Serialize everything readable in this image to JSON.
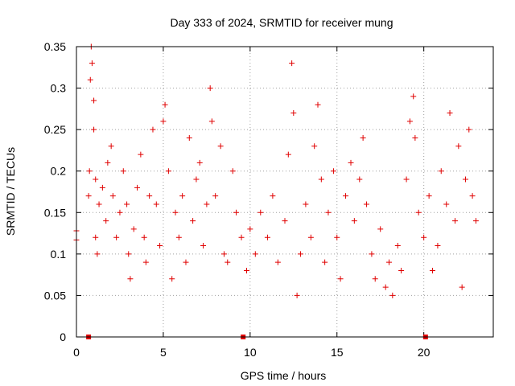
{
  "chart_data": {
    "type": "scatter",
    "title": "Day 333 of 2024, SRMTID for receiver mung",
    "xlabel": "GPS time / hours",
    "ylabel": "SRMTID / TECUs",
    "xlim": [
      0,
      24
    ],
    "ylim": [
      0,
      0.35
    ],
    "x_ticks": [
      0,
      5,
      10,
      15,
      20
    ],
    "y_ticks": [
      0,
      0.05,
      0.1,
      0.15,
      0.2,
      0.25,
      0.3,
      0.35
    ],
    "x_tick_labels": [
      "0",
      "5",
      "10",
      "15",
      "20"
    ],
    "y_tick_labels": [
      "0",
      "0.05",
      "0.1",
      "0.15",
      "0.2",
      "0.25",
      "0.3",
      "0.35"
    ],
    "grid": true,
    "marker": "+",
    "color": "#e00000",
    "zero_markers": [
      0.7,
      9.6,
      20.1
    ],
    "series": [
      {
        "name": "SRMTID",
        "points": [
          [
            0.0,
            0.128
          ],
          [
            0.0,
            0.117
          ],
          [
            0.7,
            0.17
          ],
          [
            0.75,
            0.2
          ],
          [
            0.8,
            0.31
          ],
          [
            0.85,
            0.35
          ],
          [
            0.9,
            0.33
          ],
          [
            1.0,
            0.285
          ],
          [
            1.0,
            0.25
          ],
          [
            1.1,
            0.19
          ],
          [
            1.1,
            0.12
          ],
          [
            1.2,
            0.1
          ],
          [
            1.3,
            0.16
          ],
          [
            1.5,
            0.18
          ],
          [
            1.7,
            0.14
          ],
          [
            1.8,
            0.21
          ],
          [
            2.0,
            0.23
          ],
          [
            2.1,
            0.17
          ],
          [
            2.3,
            0.12
          ],
          [
            2.5,
            0.15
          ],
          [
            2.7,
            0.2
          ],
          [
            2.9,
            0.16
          ],
          [
            3.0,
            0.1
          ],
          [
            3.1,
            0.07
          ],
          [
            3.3,
            0.13
          ],
          [
            3.5,
            0.18
          ],
          [
            3.7,
            0.22
          ],
          [
            3.9,
            0.12
          ],
          [
            4.0,
            0.09
          ],
          [
            4.2,
            0.17
          ],
          [
            4.4,
            0.25
          ],
          [
            4.6,
            0.16
          ],
          [
            4.8,
            0.11
          ],
          [
            5.0,
            0.26
          ],
          [
            5.1,
            0.28
          ],
          [
            5.3,
            0.2
          ],
          [
            5.5,
            0.07
          ],
          [
            5.7,
            0.15
          ],
          [
            5.9,
            0.12
          ],
          [
            6.1,
            0.17
          ],
          [
            6.3,
            0.09
          ],
          [
            6.5,
            0.24
          ],
          [
            6.7,
            0.14
          ],
          [
            6.9,
            0.19
          ],
          [
            7.1,
            0.21
          ],
          [
            7.3,
            0.11
          ],
          [
            7.5,
            0.16
          ],
          [
            7.7,
            0.3
          ],
          [
            7.8,
            0.26
          ],
          [
            8.0,
            0.17
          ],
          [
            8.3,
            0.23
          ],
          [
            8.5,
            0.1
          ],
          [
            8.7,
            0.09
          ],
          [
            9.0,
            0.2
          ],
          [
            9.2,
            0.15
          ],
          [
            9.5,
            0.12
          ],
          [
            9.8,
            0.08
          ],
          [
            10.0,
            0.13
          ],
          [
            10.3,
            0.1
          ],
          [
            10.6,
            0.15
          ],
          [
            11.0,
            0.12
          ],
          [
            11.3,
            0.17
          ],
          [
            11.6,
            0.09
          ],
          [
            12.0,
            0.14
          ],
          [
            12.2,
            0.22
          ],
          [
            12.4,
            0.33
          ],
          [
            12.5,
            0.27
          ],
          [
            12.7,
            0.05
          ],
          [
            12.9,
            0.1
          ],
          [
            13.2,
            0.16
          ],
          [
            13.5,
            0.12
          ],
          [
            13.7,
            0.23
          ],
          [
            13.9,
            0.28
          ],
          [
            14.1,
            0.19
          ],
          [
            14.3,
            0.09
          ],
          [
            14.5,
            0.15
          ],
          [
            14.8,
            0.2
          ],
          [
            15.0,
            0.12
          ],
          [
            15.2,
            0.07
          ],
          [
            15.5,
            0.17
          ],
          [
            15.8,
            0.21
          ],
          [
            16.0,
            0.14
          ],
          [
            16.3,
            0.19
          ],
          [
            16.5,
            0.24
          ],
          [
            16.7,
            0.16
          ],
          [
            17.0,
            0.1
          ],
          [
            17.2,
            0.07
          ],
          [
            17.5,
            0.13
          ],
          [
            17.8,
            0.06
          ],
          [
            18.0,
            0.09
          ],
          [
            18.2,
            0.05
          ],
          [
            18.5,
            0.11
          ],
          [
            18.7,
            0.08
          ],
          [
            19.0,
            0.19
          ],
          [
            19.2,
            0.26
          ],
          [
            19.4,
            0.29
          ],
          [
            19.5,
            0.24
          ],
          [
            19.7,
            0.15
          ],
          [
            20.0,
            0.12
          ],
          [
            20.3,
            0.17
          ],
          [
            20.5,
            0.08
          ],
          [
            20.8,
            0.11
          ],
          [
            21.0,
            0.2
          ],
          [
            21.3,
            0.16
          ],
          [
            21.5,
            0.27
          ],
          [
            21.8,
            0.14
          ],
          [
            22.0,
            0.23
          ],
          [
            22.2,
            0.06
          ],
          [
            22.4,
            0.19
          ],
          [
            22.6,
            0.25
          ],
          [
            22.8,
            0.17
          ],
          [
            23.0,
            0.14
          ]
        ]
      }
    ]
  }
}
